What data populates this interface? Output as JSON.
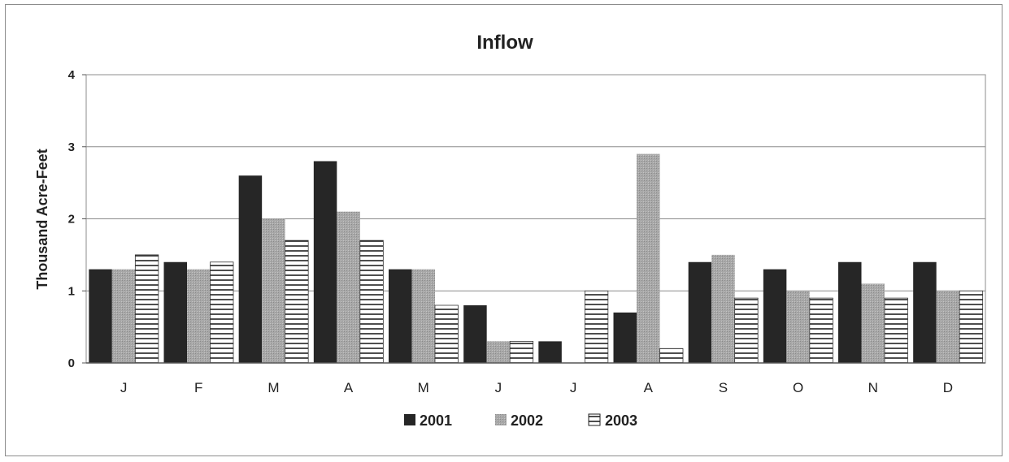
{
  "chart_data": {
    "type": "bar",
    "title": "Inflow",
    "xlabel": "",
    "ylabel": "Thousand Acre-Feet",
    "ylim": [
      0,
      4
    ],
    "yticks": [
      "0",
      "1",
      "2",
      "3",
      "4"
    ],
    "categories": [
      "J",
      "F",
      "M",
      "A",
      "M",
      "J",
      "J",
      "A",
      "S",
      "O",
      "N",
      "D"
    ],
    "grid": true,
    "legend_position": "bottom",
    "series": [
      {
        "name": "2001",
        "color": "#262626",
        "pattern": "solid-dark",
        "values": [
          1.3,
          1.4,
          2.6,
          2.8,
          1.3,
          0.8,
          0.3,
          0.7,
          1.4,
          1.3,
          1.4,
          1.4
        ]
      },
      {
        "name": "2002",
        "color": "#a6a6a6",
        "pattern": "stipple-gray",
        "values": [
          1.3,
          1.3,
          2.0,
          2.1,
          1.3,
          0.3,
          0.0,
          2.9,
          1.5,
          1.0,
          1.1,
          1.0
        ]
      },
      {
        "name": "2003",
        "color": "#ffffff",
        "pattern": "horizontal-lines",
        "values": [
          1.5,
          1.4,
          1.7,
          1.7,
          0.8,
          0.3,
          1.0,
          0.2,
          0.9,
          0.9,
          0.9,
          1.0
        ]
      }
    ]
  }
}
